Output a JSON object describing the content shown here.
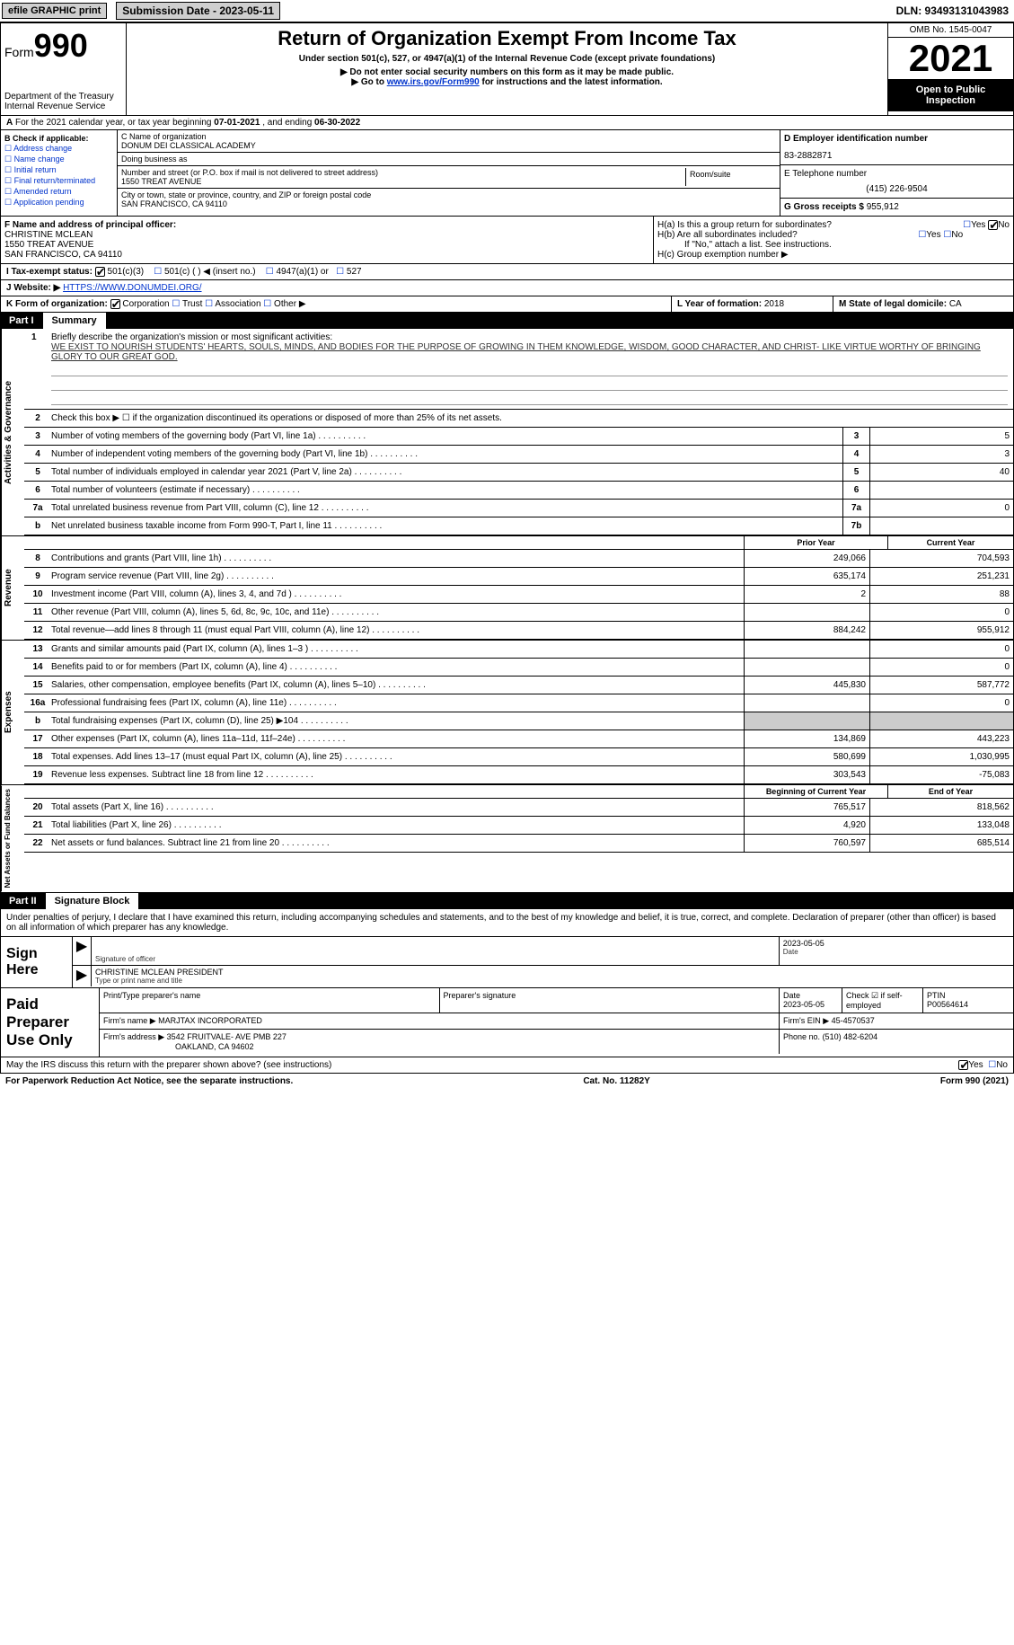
{
  "topbar": {
    "efile": "efile GRAPHIC print",
    "submission": "Submission Date - 2023-05-11",
    "dln": "DLN: 93493131043983"
  },
  "header": {
    "form_word": "Form",
    "form_num": "990",
    "dept": "Department of the Treasury Internal Revenue Service",
    "title": "Return of Organization Exempt From Income Tax",
    "sub1": "Under section 501(c), 527, or 4947(a)(1) of the Internal Revenue Code (except private foundations)",
    "sub2": "▶ Do not enter social security numbers on this form as it may be made public.",
    "sub3_pre": "▶ Go to ",
    "sub3_link": "www.irs.gov/Form990",
    "sub3_post": " for instructions and the latest information.",
    "omb": "OMB No. 1545-0047",
    "year": "2021",
    "inspect": "Open to Public Inspection"
  },
  "row_a": {
    "label_a": "A",
    "text": " For the 2021 calendar year, or tax year beginning ",
    "begin": "07-01-2021",
    "mid": " , and ending ",
    "end": "06-30-2022"
  },
  "col_b": {
    "label": "B Check if applicable:",
    "opts": [
      "Address change",
      "Name change",
      "Initial return",
      "Final return/terminated",
      "Amended return",
      "Application pending"
    ]
  },
  "col_c": {
    "name_lbl": "C Name of organization",
    "name": "DONUM DEI CLASSICAL ACADEMY",
    "dba_lbl": "Doing business as",
    "dba": "",
    "street_lbl": "Number and street (or P.O. box if mail is not delivered to street address)",
    "street": "1550 TREAT AVENUE",
    "room_lbl": "Room/suite",
    "city_lbl": "City or town, state or province, country, and ZIP or foreign postal code",
    "city": "SAN FRANCISCO, CA  94110"
  },
  "col_d": {
    "ein_lbl": "D Employer identification number",
    "ein": "83-2882871",
    "phone_lbl": "E Telephone number",
    "phone": "(415) 226-9504",
    "gross_lbl": "G Gross receipts $",
    "gross": "955,912"
  },
  "row_f": {
    "lbl": "F Name and address of principal officer:",
    "name": "CHRISTINE MCLEAN",
    "addr1": "1550 TREAT AVENUE",
    "addr2": "SAN FRANCISCO, CA  94110"
  },
  "row_h": {
    "ha": "H(a)  Is this a group return for subordinates?",
    "hb": "H(b)  Are all subordinates included?",
    "hb_note": "If \"No,\" attach a list. See instructions.",
    "hc": "H(c)  Group exemption number ▶"
  },
  "row_i": {
    "lbl": "I   Tax-exempt status:",
    "o1": "501(c)(3)",
    "o2": "501(c) (  ) ◀ (insert no.)",
    "o3": "4947(a)(1) or",
    "o4": "527"
  },
  "row_j": {
    "lbl": "J   Website: ▶ ",
    "url": "HTTPS://WWW.DONUMDEI.ORG/"
  },
  "row_k": {
    "lbl": "K Form of organization:",
    "o1": "Corporation",
    "o2": "Trust",
    "o3": "Association",
    "o4": "Other ▶"
  },
  "row_l": {
    "lbl": "L Year of formation: ",
    "val": "2018"
  },
  "row_m": {
    "lbl": "M State of legal domicile: ",
    "val": "CA"
  },
  "part1": {
    "num": "Part I",
    "title": "Summary"
  },
  "mission": {
    "num": "1",
    "lbl": "Briefly describe the organization's mission or most significant activities:",
    "txt": "WE EXIST TO NOURISH STUDENTS' HEARTS, SOULS, MINDS, AND BODIES FOR THE PURPOSE OF GROWING IN THEM KNOWLEDGE, WISDOM, GOOD CHARACTER, AND CHRIST- LIKE VIRTUE WORTHY OF BRINGING GLORY TO OUR GREAT GOD."
  },
  "gov_lines": [
    {
      "n": "2",
      "d": "Check this box ▶ ☐ if the organization discontinued its operations or disposed of more than 25% of its net assets.",
      "box": "",
      "v": ""
    },
    {
      "n": "3",
      "d": "Number of voting members of the governing body (Part VI, line 1a)",
      "box": "3",
      "v": "5"
    },
    {
      "n": "4",
      "d": "Number of independent voting members of the governing body (Part VI, line 1b)",
      "box": "4",
      "v": "3"
    },
    {
      "n": "5",
      "d": "Total number of individuals employed in calendar year 2021 (Part V, line 2a)",
      "box": "5",
      "v": "40"
    },
    {
      "n": "6",
      "d": "Total number of volunteers (estimate if necessary)",
      "box": "6",
      "v": ""
    },
    {
      "n": "7a",
      "d": "Total unrelated business revenue from Part VIII, column (C), line 12",
      "box": "7a",
      "v": "0"
    },
    {
      "n": "b",
      "d": "Net unrelated business taxable income from Form 990-T, Part I, line 11",
      "box": "7b",
      "v": ""
    }
  ],
  "rev_hdr": {
    "c1": "Prior Year",
    "c2": "Current Year"
  },
  "rev_lines": [
    {
      "n": "8",
      "d": "Contributions and grants (Part VIII, line 1h)",
      "v1": "249,066",
      "v2": "704,593"
    },
    {
      "n": "9",
      "d": "Program service revenue (Part VIII, line 2g)",
      "v1": "635,174",
      "v2": "251,231"
    },
    {
      "n": "10",
      "d": "Investment income (Part VIII, column (A), lines 3, 4, and 7d )",
      "v1": "2",
      "v2": "88"
    },
    {
      "n": "11",
      "d": "Other revenue (Part VIII, column (A), lines 5, 6d, 8c, 9c, 10c, and 11e)",
      "v1": "",
      "v2": "0"
    },
    {
      "n": "12",
      "d": "Total revenue—add lines 8 through 11 (must equal Part VIII, column (A), line 12)",
      "v1": "884,242",
      "v2": "955,912"
    }
  ],
  "exp_lines": [
    {
      "n": "13",
      "d": "Grants and similar amounts paid (Part IX, column (A), lines 1–3 )",
      "v1": "",
      "v2": "0"
    },
    {
      "n": "14",
      "d": "Benefits paid to or for members (Part IX, column (A), line 4)",
      "v1": "",
      "v2": "0"
    },
    {
      "n": "15",
      "d": "Salaries, other compensation, employee benefits (Part IX, column (A), lines 5–10)",
      "v1": "445,830",
      "v2": "587,772"
    },
    {
      "n": "16a",
      "d": "Professional fundraising fees (Part IX, column (A), line 11e)",
      "v1": "",
      "v2": "0"
    },
    {
      "n": "b",
      "d": "Total fundraising expenses (Part IX, column (D), line 25) ▶104",
      "v1": "shade",
      "v2": "shade"
    },
    {
      "n": "17",
      "d": "Other expenses (Part IX, column (A), lines 11a–11d, 11f–24e)",
      "v1": "134,869",
      "v2": "443,223"
    },
    {
      "n": "18",
      "d": "Total expenses. Add lines 13–17 (must equal Part IX, column (A), line 25)",
      "v1": "580,699",
      "v2": "1,030,995"
    },
    {
      "n": "19",
      "d": "Revenue less expenses. Subtract line 18 from line 12",
      "v1": "303,543",
      "v2": "-75,083"
    }
  ],
  "net_hdr": {
    "c1": "Beginning of Current Year",
    "c2": "End of Year"
  },
  "net_lines": [
    {
      "n": "20",
      "d": "Total assets (Part X, line 16)",
      "v1": "765,517",
      "v2": "818,562"
    },
    {
      "n": "21",
      "d": "Total liabilities (Part X, line 26)",
      "v1": "4,920",
      "v2": "133,048"
    },
    {
      "n": "22",
      "d": "Net assets or fund balances. Subtract line 21 from line 20",
      "v1": "760,597",
      "v2": "685,514"
    }
  ],
  "vtabs": {
    "gov": "Activities & Governance",
    "rev": "Revenue",
    "exp": "Expenses",
    "net": "Net Assets or Fund Balances"
  },
  "part2": {
    "num": "Part II",
    "title": "Signature Block"
  },
  "sig_intro": "Under penalties of perjury, I declare that I have examined this return, including accompanying schedules and statements, and to the best of my knowledge and belief, it is true, correct, and complete. Declaration of preparer (other than officer) is based on all information of which preparer has any knowledge.",
  "sign": {
    "lbl": "Sign Here",
    "sig_lbl": "Signature of officer",
    "date": "2023-05-05",
    "date_lbl": "Date",
    "name": "CHRISTINE MCLEAN  PRESIDENT",
    "name_lbl": "Type or print name and title"
  },
  "prep": {
    "lbl": "Paid Preparer Use Only",
    "r1": {
      "c1_lbl": "Print/Type preparer's name",
      "c1": "",
      "c2_lbl": "Preparer's signature",
      "c2": "",
      "c3_lbl": "Date",
      "c3": "2023-05-05",
      "c4_lbl": "Check ☑ if self-employed",
      "c5_lbl": "PTIN",
      "c5": "P00564614"
    },
    "r2": {
      "lbl": "Firm's name    ▶",
      "val": "MARJTAX INCORPORATED",
      "ein_lbl": "Firm's EIN ▶",
      "ein": "45-4570537"
    },
    "r3": {
      "lbl": "Firm's address ▶",
      "val": "3542 FRUITVALE- AVE PMB 227",
      "val2": "OAKLAND, CA  94602",
      "ph_lbl": "Phone no.",
      "ph": "(510) 482-6204"
    }
  },
  "footer_q": "May the IRS discuss this return with the preparer shown above? (see instructions)",
  "footer": {
    "l": "For Paperwork Reduction Act Notice, see the separate instructions.",
    "c": "Cat. No. 11282Y",
    "r": "Form 990 (2021)"
  }
}
